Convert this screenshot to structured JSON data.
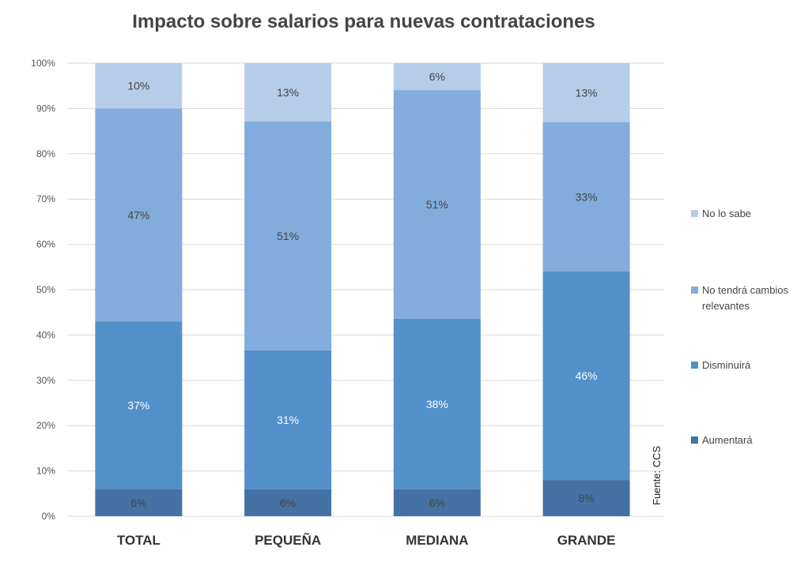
{
  "chart_data": {
    "type": "bar",
    "stacked": true,
    "title": "Impacto sobre salarios para nuevas contrataciones",
    "categories": [
      "TOTAL",
      "PEQUEÑA",
      "MEDIANA",
      "GRANDE"
    ],
    "series": [
      {
        "name": "Aumentará",
        "color": "#4472a4",
        "values": [
          6,
          6,
          6,
          8
        ],
        "labels": [
          "6%",
          "6%",
          "6%",
          "8%"
        ]
      },
      {
        "name": "Disminuirá",
        "color": "#5390c9",
        "values": [
          37,
          31,
          38,
          46
        ],
        "labels": [
          "37%",
          "31%",
          "38%",
          "46%"
        ]
      },
      {
        "name": "No tendrá cambios relevantes",
        "color": "#82acdb",
        "values": [
          47,
          51,
          51,
          33
        ],
        "labels": [
          "47%",
          "51%",
          "51%",
          "33%"
        ]
      },
      {
        "name": "No lo sabe",
        "color": "#b6cdea",
        "values": [
          10,
          13,
          6,
          13
        ],
        "labels": [
          "10%",
          "13%",
          "6%",
          "13%"
        ]
      }
    ],
    "yticks": [
      "0%",
      "10%",
      "20%",
      "30%",
      "40%",
      "50%",
      "60%",
      "70%",
      "80%",
      "90%",
      "100%"
    ],
    "ylim": [
      0,
      100
    ],
    "legend_position": "right",
    "legend_order": [
      "No lo sabe",
      "No tendrá cambios relevantes",
      "Disminuirá",
      "Aumentará"
    ],
    "legend_lines": {
      "No lo sabe": [
        "No lo sabe"
      ],
      "No tendrá cambios relevantes": [
        "No tendrá cambios",
        "relevantes"
      ],
      "Disminuirá": [
        "Disminuirá"
      ],
      "Aumentará": [
        "Aumentará"
      ]
    },
    "source": "Fuente: CCS",
    "gridlines": true
  }
}
